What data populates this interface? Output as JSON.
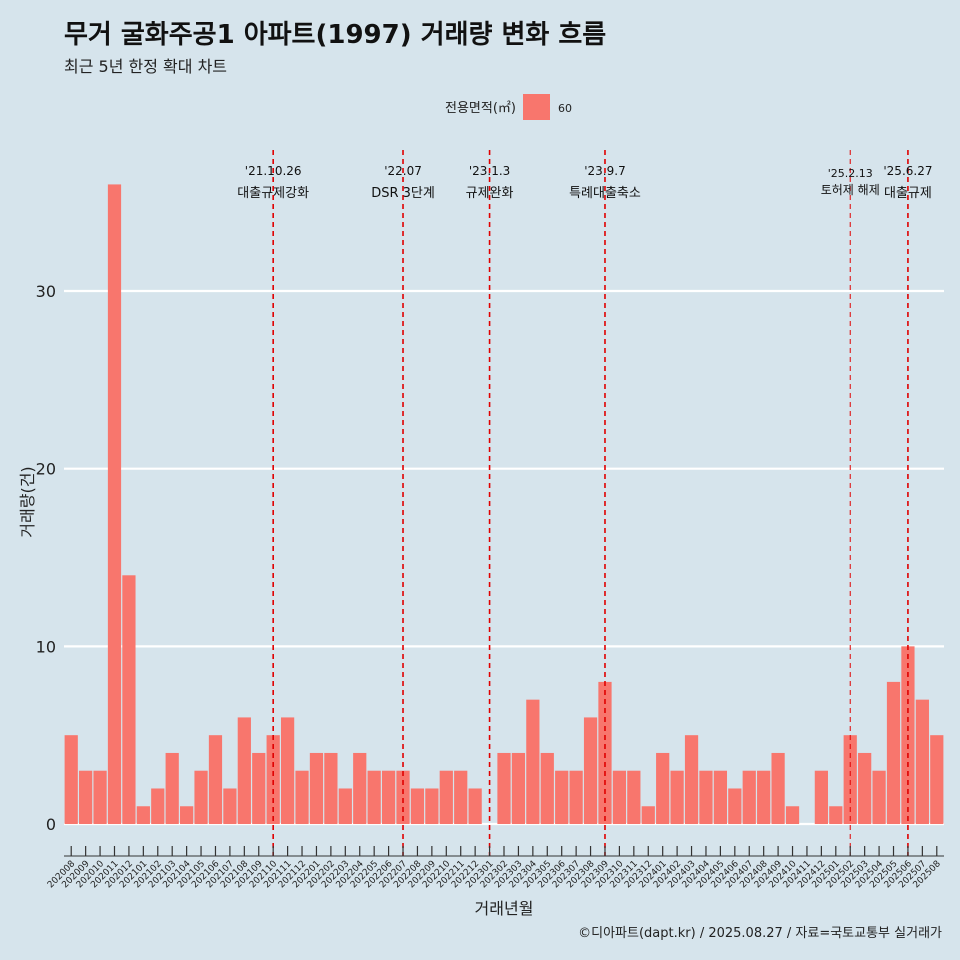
{
  "title": "무거 굴화주공1 아파트(1997) 거래량 변화 흐름",
  "subtitle": "최근 5년 한정 확대 차트",
  "credit": "©디아파트(dapt.kr) / 2025.08.27 / 자료=국토교통부 실거래가",
  "colors": {
    "bar": "#f8766d",
    "background": "#d6e4ec",
    "grid": "#ffffff",
    "event_line": "#e00000"
  },
  "chart_data": {
    "type": "bar",
    "xlabel": "거래년월",
    "ylabel": "거래량(건)",
    "ylim": [
      -1.8,
      38.5
    ],
    "yticks": [
      0,
      10,
      20,
      30
    ],
    "grid": true,
    "legend": {
      "title": "전용면적(㎡)",
      "placement": "top",
      "entries": [
        "60"
      ]
    },
    "categories": [
      "202008",
      "202009",
      "202010",
      "202011",
      "202012",
      "202101",
      "202102",
      "202103",
      "202104",
      "202105",
      "202106",
      "202107",
      "202108",
      "202109",
      "202110",
      "202111",
      "202112",
      "202201",
      "202202",
      "202203",
      "202204",
      "202205",
      "202206",
      "202207",
      "202208",
      "202209",
      "202210",
      "202211",
      "202212",
      "202301",
      "202302",
      "202303",
      "202304",
      "202305",
      "202306",
      "202307",
      "202308",
      "202309",
      "202310",
      "202311",
      "202312",
      "202401",
      "202402",
      "202403",
      "202404",
      "202405",
      "202406",
      "202407",
      "202408",
      "202409",
      "202410",
      "202411",
      "202412",
      "202501",
      "202502",
      "202503",
      "202504",
      "202505",
      "202506",
      "202507",
      "202508"
    ],
    "series": [
      {
        "name": "60",
        "values": [
          5,
          3,
          3,
          36,
          14,
          1,
          2,
          4,
          1,
          3,
          5,
          2,
          6,
          4,
          5,
          6,
          3,
          4,
          4,
          2,
          4,
          3,
          3,
          3,
          2,
          2,
          3,
          3,
          2,
          0,
          4,
          4,
          7,
          4,
          3,
          3,
          6,
          8,
          3,
          3,
          1,
          4,
          3,
          5,
          3,
          3,
          2,
          3,
          3,
          4,
          1,
          0,
          3,
          1,
          5,
          4,
          3,
          8,
          10,
          7,
          5
        ]
      }
    ],
    "annotations": [
      {
        "category": "202110",
        "date": "'21.10.26",
        "label": "대출규제강화",
        "style": "bold"
      },
      {
        "category": "202207",
        "date": "'22.07",
        "label": "DSR 3단계",
        "style": "bold"
      },
      {
        "category": "202301",
        "date": "'23.1.3",
        "label": "규제완화",
        "style": "bold"
      },
      {
        "category": "202309",
        "date": "'23.9.7",
        "label": "특례대출축소",
        "style": "bold"
      },
      {
        "category": "202502",
        "date": "'25.2.13",
        "label": "토허제 해제",
        "style": "thin"
      },
      {
        "category": "202506",
        "date": "'25.6.27",
        "label": "대출규제",
        "style": "bold"
      }
    ]
  }
}
